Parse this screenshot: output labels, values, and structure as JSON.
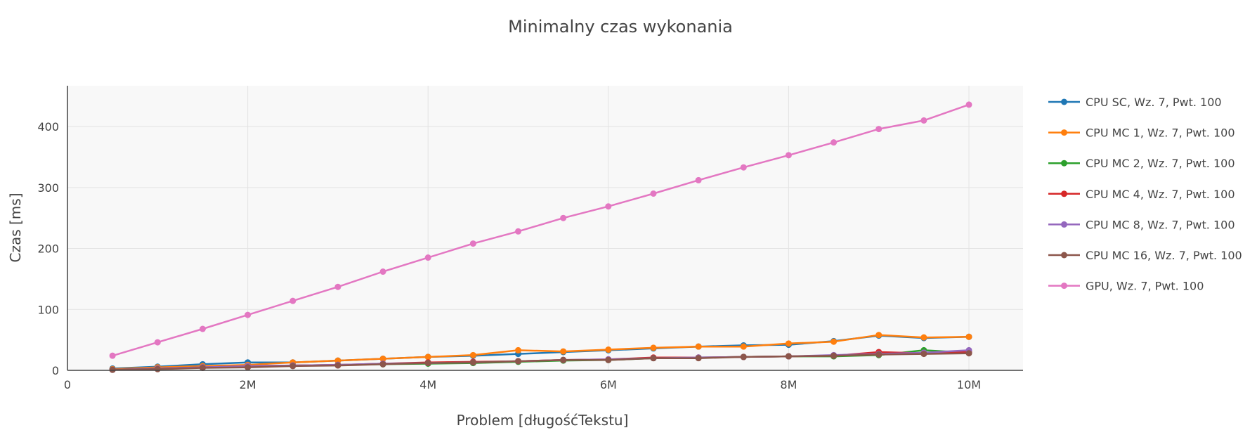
{
  "chart_data": {
    "type": "line",
    "title": "Minimalny czas wykonania",
    "xlabel": "Problem [długośćTekstu]",
    "ylabel": "Czas [ms]",
    "xlim": [
      0,
      10600000
    ],
    "ylim": [
      0,
      467
    ],
    "x_ticks": [
      {
        "value": 0,
        "label": "0"
      },
      {
        "value": 2000000,
        "label": "2M"
      },
      {
        "value": 4000000,
        "label": "4M"
      },
      {
        "value": 6000000,
        "label": "6M"
      },
      {
        "value": 8000000,
        "label": "8M"
      },
      {
        "value": 10000000,
        "label": "10M"
      }
    ],
    "y_ticks": [
      {
        "value": 0,
        "label": "0"
      },
      {
        "value": 100,
        "label": "100"
      },
      {
        "value": 200,
        "label": "200"
      },
      {
        "value": 300,
        "label": "300"
      },
      {
        "value": 400,
        "label": "400"
      }
    ],
    "grid": true,
    "legend_position": "right",
    "x": [
      500000,
      1000000,
      1500000,
      2000000,
      2500000,
      3000000,
      3500000,
      4000000,
      4500000,
      5000000,
      5500000,
      6000000,
      6500000,
      7000000,
      7500000,
      8000000,
      8500000,
      9000000,
      9500000,
      10000000
    ],
    "series": [
      {
        "name": "CPU SC, Wz. 7, Pwt. 100",
        "color": "#1f77b4",
        "values": [
          3,
          6,
          10,
          13,
          13,
          16,
          19,
          22,
          24,
          27,
          30,
          33,
          36,
          39,
          41,
          42,
          48,
          57,
          53,
          55
        ]
      },
      {
        "name": "CPU MC 1, Wz. 7, Pwt. 100",
        "color": "#ff7f0e",
        "values": [
          2,
          5,
          7,
          9,
          13,
          16,
          19,
          22,
          25,
          33,
          31,
          34,
          37,
          39,
          39,
          44,
          47,
          58,
          54,
          55
        ]
      },
      {
        "name": "CPU MC 2, Wz. 7, Pwt. 100",
        "color": "#2ca02c",
        "values": [
          1,
          3,
          5,
          6,
          8,
          9,
          10,
          11,
          12,
          14,
          16,
          17,
          20,
          21,
          22,
          23,
          23,
          25,
          33,
          29
        ]
      },
      {
        "name": "CPU MC 4, Wz. 7, Pwt. 100",
        "color": "#d62728",
        "values": [
          1,
          3,
          5,
          7,
          8,
          9,
          11,
          13,
          14,
          15,
          17,
          18,
          21,
          21,
          22,
          23,
          24,
          30,
          28,
          30
        ]
      },
      {
        "name": "CPU MC 8, Wz. 7, Pwt. 100",
        "color": "#9467bd",
        "values": [
          1,
          3,
          5,
          7,
          8,
          9,
          11,
          12,
          13,
          15,
          17,
          18,
          20,
          21,
          22,
          23,
          25,
          27,
          29,
          33
        ]
      },
      {
        "name": "CPU MC 16, Wz. 7, Pwt. 100",
        "color": "#8c564b",
        "values": [
          1,
          2,
          4,
          5,
          7,
          8,
          10,
          12,
          13,
          15,
          17,
          17,
          20,
          20,
          22,
          23,
          24,
          26,
          27,
          28
        ]
      },
      {
        "name": "GPU, Wz. 7, Pwt. 100",
        "color": "#e377c2",
        "values": [
          24,
          46,
          68,
          91,
          114,
          137,
          162,
          185,
          208,
          228,
          250,
          269,
          290,
          312,
          333,
          353,
          374,
          396,
          410,
          436
        ]
      }
    ]
  }
}
